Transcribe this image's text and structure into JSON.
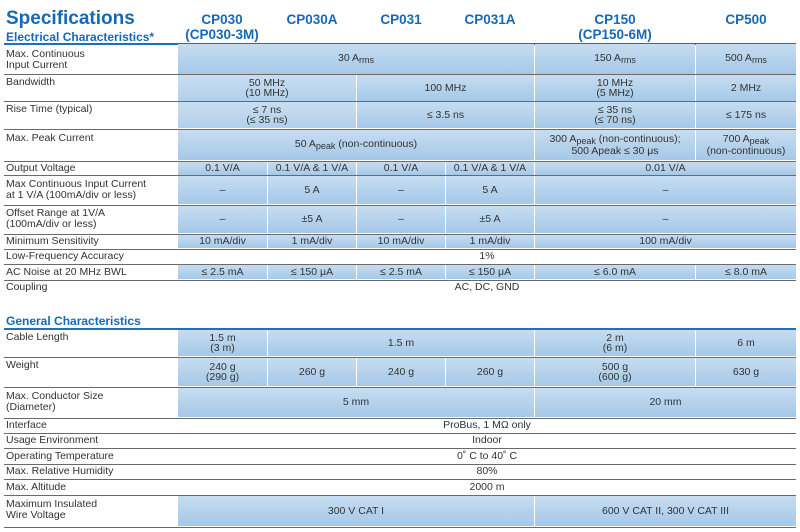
{
  "title": "Specifications",
  "electrical_heading": "Electrical Characteristics*",
  "general_heading": "General Characteristics",
  "models": [
    {
      "name": "CP030",
      "alt": "(CP030-3M)"
    },
    {
      "name": "CP030A",
      "alt": ""
    },
    {
      "name": "CP031",
      "alt": ""
    },
    {
      "name": "CP031A",
      "alt": ""
    },
    {
      "name": "CP150",
      "alt": "(CP150-6M)"
    },
    {
      "name": "CP500",
      "alt": ""
    }
  ],
  "electrical": {
    "max_continuous_input": {
      "label": [
        "Max. Continuous",
        "Input Current"
      ],
      "cp030_031a": "30 A",
      "cp150": "150 A",
      "cp500": "500 A",
      "unit_sub": "rms"
    },
    "bandwidth": {
      "label": "Bandwidth",
      "cp030_030a": [
        "50 MHz",
        "(10 MHz)"
      ],
      "cp031_031a": "100 MHz",
      "cp150": [
        "10 MHz",
        "(5 MHz)"
      ],
      "cp500": "2 MHz"
    },
    "rise_time": {
      "label": "Rise Time (typical)",
      "cp030_030a": [
        "≤ 7 ns",
        "(≤ 35 ns)"
      ],
      "cp031_031a": "≤ 3.5 ns",
      "cp150": [
        "≤ 35 ns",
        "(≤ 70 ns)"
      ],
      "cp500": "≤ 175 ns"
    },
    "max_peak_current": {
      "label": "Max. Peak Current",
      "cp030_031a_pre": "50 A",
      "cp030_031a_sub": "peak",
      "cp030_031a_post": " (non-continuous)",
      "cp150_pre": "300 A",
      "cp150_sub": "peak",
      "cp150_post": " (non-continuous);",
      "cp150_line2": "500 Apeak ≤ 30 μs",
      "cp500_pre": "700 A",
      "cp500_sub": "peak",
      "cp500_line2": "(non-continuous)"
    },
    "output_voltage": {
      "label": "Output Voltage",
      "values": [
        "0.1 V/A",
        "0.1 V/A & 1 V/A",
        "0.1 V/A",
        "0.1 V/A & 1 V/A"
      ],
      "cp150_500": "0.01 V/A"
    },
    "max_cont_1va": {
      "label": [
        "Max Continuous Input Current",
        "at 1 V/A (100mA/div or less)"
      ],
      "values": [
        "–",
        "5 A",
        "–",
        "5 A"
      ],
      "cp150_500": "–"
    },
    "offset_range": {
      "label": [
        "Offset Range at 1V/A",
        "(100mA/div or less)"
      ],
      "values": [
        "–",
        "±5 A",
        "–",
        "±5 A"
      ],
      "cp150_500": "–"
    },
    "min_sensitivity": {
      "label": "Minimum Sensitivity",
      "values": [
        "10 mA/div",
        "1 mA/div",
        "10 mA/div",
        "1 mA/div"
      ],
      "cp150_500": "100 mA/div"
    },
    "low_freq_accuracy": {
      "label": "Low-Frequency Accuracy",
      "value": "1%"
    },
    "ac_noise": {
      "label": "AC Noise at 20 MHz BWL",
      "values": [
        "≤ 2.5 mA",
        "≤ 150 μA",
        "≤ 2.5 mA",
        "≤ 150 μA",
        "≤ 6.0 mA",
        "≤ 8.0 mA"
      ]
    },
    "coupling": {
      "label": "Coupling",
      "value": "AC, DC, GND"
    }
  },
  "general": {
    "cable_length": {
      "label": "Cable Length",
      "cp030": [
        "1.5 m",
        "(3 m)"
      ],
      "cp030a_031a": "1.5 m",
      "cp150": [
        "2 m",
        "(6 m)"
      ],
      "cp500": "6 m"
    },
    "weight": {
      "label": "Weight",
      "cp030": [
        "240 g",
        "(290 g)"
      ],
      "cp030a": "260 g",
      "cp031": "240 g",
      "cp031a": "260 g",
      "cp150": [
        "500 g",
        "(600 g)"
      ],
      "cp500": "630 g"
    },
    "max_conductor": {
      "label": [
        "Max. Conductor Size",
        "(Diameter)"
      ],
      "cp030_031a": "5 mm",
      "cp150_500": "20 mm"
    },
    "interface": {
      "label": "Interface",
      "value": "ProBus, 1 MΩ only"
    },
    "usage_env": {
      "label": "Usage Environment",
      "value": "Indoor"
    },
    "operating_temp": {
      "label": "Operating Temperature",
      "value": "0˚ C to 40˚ C"
    },
    "max_humidity": {
      "label": "Max. Relative Humidity",
      "value": "80%"
    },
    "max_altitude": {
      "label": "Max. Altitude",
      "value": "2000 m"
    },
    "max_insulated": {
      "label": [
        "Maximum Insulated",
        "Wire Voltage"
      ],
      "cp030_031a": "300 V CAT I",
      "cp150_500": "600 V CAT II, 300 V CAT III"
    }
  }
}
